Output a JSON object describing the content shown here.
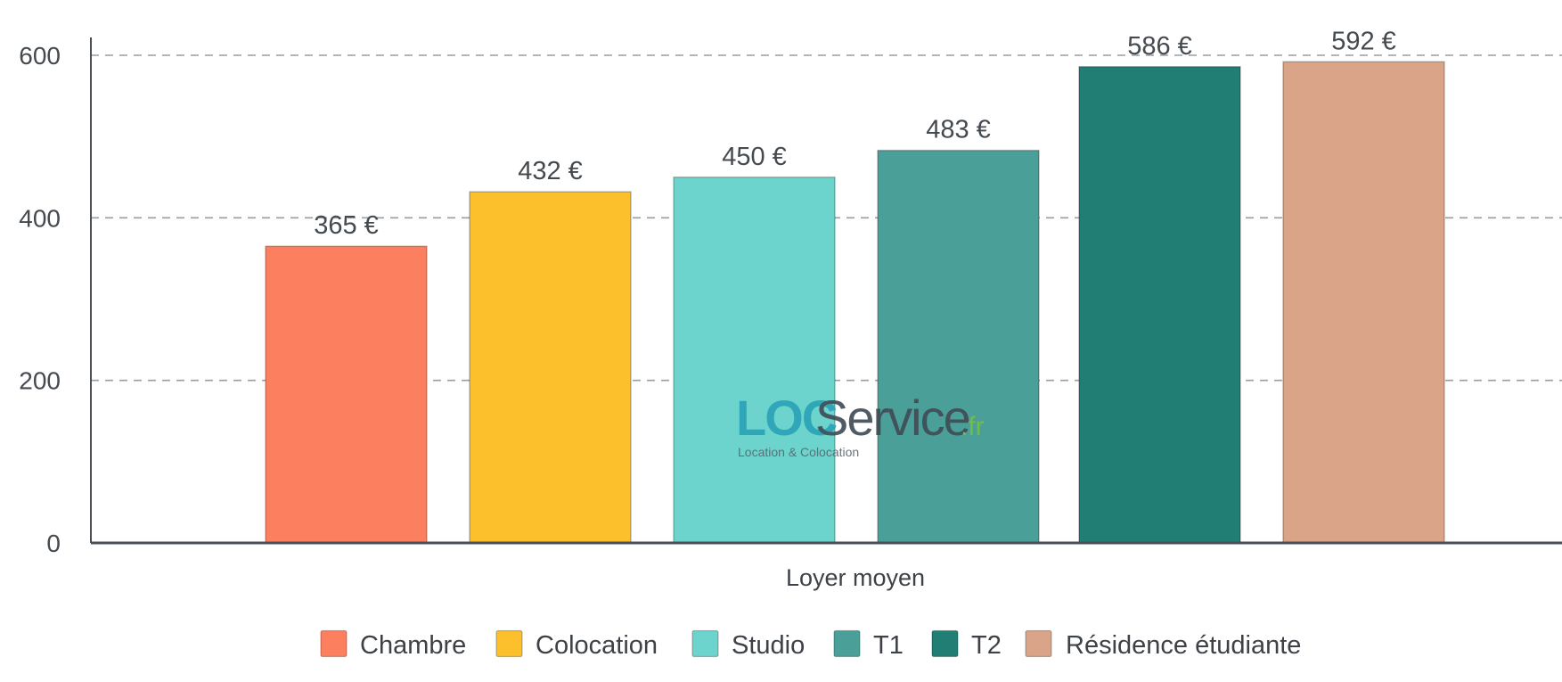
{
  "chart_data": {
    "type": "bar",
    "categories": [
      "Loyer moyen"
    ],
    "series": [
      {
        "name": "Chambre",
        "values": [
          365
        ],
        "label": "365 €",
        "color": "#fc8060"
      },
      {
        "name": "Colocation",
        "values": [
          432
        ],
        "label": "432 €",
        "color": "#fcc02c"
      },
      {
        "name": "Studio",
        "values": [
          450
        ],
        "label": "450 €",
        "color": "#6cd4cc"
      },
      {
        "name": "T1",
        "values": [
          483
        ],
        "label": "483 €",
        "color": "#4aa098"
      },
      {
        "name": "T2",
        "values": [
          586
        ],
        "label": "586 €",
        "color": "#207e74"
      },
      {
        "name": "Résidence étudiante",
        "values": [
          592
        ],
        "label": "592 €",
        "color": "#d9a488"
      }
    ],
    "xlabel": "Loyer moyen",
    "ylabel": "",
    "ylim": [
      0,
      600
    ],
    "yticks": [
      "0",
      "200",
      "400",
      "600"
    ],
    "grid": true,
    "legend": "bottom"
  },
  "watermark": {
    "brand_a": "LOC",
    "brand_b": "Service",
    "brand_c": ".fr",
    "tagline": "Location & Colocation"
  }
}
